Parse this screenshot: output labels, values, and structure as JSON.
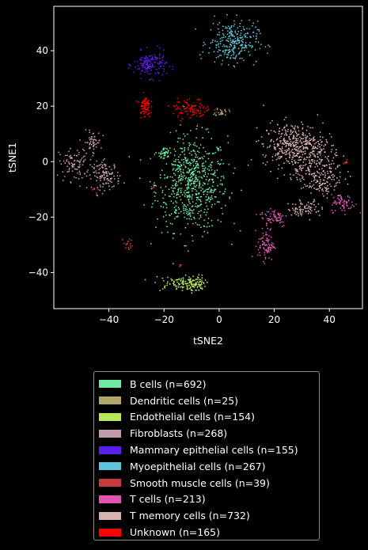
{
  "chart_data": {
    "type": "scatter",
    "xlabel": "tSNE2",
    "ylabel": "tSNE1",
    "xlim": [
      -60,
      52
    ],
    "ylim": [
      -53,
      56
    ],
    "xticks": [
      -40,
      -20,
      0,
      20,
      40
    ],
    "yticks": [
      -40,
      -20,
      0,
      20,
      40
    ],
    "grid": false,
    "legend_position": "below",
    "series": [
      {
        "name": "B cells (n=692)",
        "color": "#6eeaa3",
        "count": 692,
        "clusters": [
          {
            "cx": -10,
            "cy": -8,
            "sx": 6.5,
            "sy": 8.5,
            "w": 0.96
          },
          {
            "cx": -20,
            "cy": 3,
            "sx": 1,
            "sy": 1,
            "w": 0.04
          }
        ]
      },
      {
        "name": "Dendritic cells (n=25)",
        "color": "#b0a868",
        "count": 25,
        "clusters": [
          {
            "cx": 1,
            "cy": 18,
            "sx": 1.2,
            "sy": 0.8,
            "w": 1
          }
        ]
      },
      {
        "name": "Endothelial cells (n=154)",
        "color": "#b5e85a",
        "count": 154,
        "clusters": [
          {
            "cx": -15,
            "cy": -44,
            "sx": 4.5,
            "sy": 1.3,
            "w": 0.55
          },
          {
            "cx": -9,
            "cy": -44,
            "sx": 2,
            "sy": 1.5,
            "w": 0.45
          }
        ]
      },
      {
        "name": "Fibroblasts (n=268)",
        "color": "#c49aae",
        "count": 268,
        "clusters": [
          {
            "cx": -52,
            "cy": -1,
            "sx": 3,
            "sy": 3,
            "w": 0.35
          },
          {
            "cx": -46,
            "cy": 7,
            "sx": 1.5,
            "sy": 2,
            "w": 0.2
          },
          {
            "cx": -41,
            "cy": -5,
            "sx": 2.5,
            "sy": 2.5,
            "w": 0.45
          }
        ]
      },
      {
        "name": "Mammary epithelial cells (n=155)",
        "color": "#5a1fe8",
        "count": 155,
        "clusters": [
          {
            "cx": -25,
            "cy": 35,
            "sx": 3,
            "sy": 2.3,
            "w": 1
          }
        ]
      },
      {
        "name": "Myoepithelial cells (n=267)",
        "color": "#5cc6d8",
        "count": 267,
        "clusters": [
          {
            "cx": 5,
            "cy": 43,
            "sx": 4.5,
            "sy": 3.8,
            "w": 1
          }
        ]
      },
      {
        "name": "Smooth muscle cells (n=39)",
        "color": "#c83a3c",
        "count": 39,
        "clusters": [
          {
            "cx": -33,
            "cy": -30,
            "sx": 0.8,
            "sy": 1.2,
            "w": 0.45
          },
          {
            "cx": -24,
            "cy": -9,
            "sx": 0.5,
            "sy": 0.5,
            "w": 0.1
          },
          {
            "cx": -46,
            "cy": -10,
            "sx": 1,
            "sy": 1,
            "w": 0.15
          },
          {
            "cx": -14,
            "cy": -38,
            "sx": 0.5,
            "sy": 0.5,
            "w": 0.1
          },
          {
            "cx": 46,
            "cy": 0,
            "sx": 0.5,
            "sy": 0.5,
            "w": 0.2
          }
        ]
      },
      {
        "name": "T cells (n=213)",
        "color": "#e055b0",
        "count": 213,
        "clusters": [
          {
            "cx": 17,
            "cy": -30,
            "sx": 1.5,
            "sy": 2.8,
            "w": 0.4
          },
          {
            "cx": 20,
            "cy": -20,
            "sx": 2.5,
            "sy": 1.8,
            "w": 0.3
          },
          {
            "cx": 45,
            "cy": -15,
            "sx": 2.2,
            "sy": 1.6,
            "w": 0.3
          }
        ]
      },
      {
        "name": "T memory cells (n=732)",
        "color": "#d8b2b0",
        "count": 732,
        "clusters": [
          {
            "cx": 27,
            "cy": 6,
            "sx": 5.5,
            "sy": 4,
            "w": 0.55
          },
          {
            "cx": 36,
            "cy": -4,
            "sx": 4.5,
            "sy": 5,
            "w": 0.35
          },
          {
            "cx": 31,
            "cy": -17,
            "sx": 3,
            "sy": 1.3,
            "w": 0.1
          }
        ]
      },
      {
        "name": "Unknown (n=165)",
        "color": "#ff0000",
        "count": 165,
        "clusters": [
          {
            "cx": -27,
            "cy": 20,
            "sx": 1,
            "sy": 2,
            "w": 0.45
          },
          {
            "cx": -10,
            "cy": 19,
            "sx": 3.5,
            "sy": 1.8,
            "w": 0.55
          }
        ]
      }
    ]
  }
}
